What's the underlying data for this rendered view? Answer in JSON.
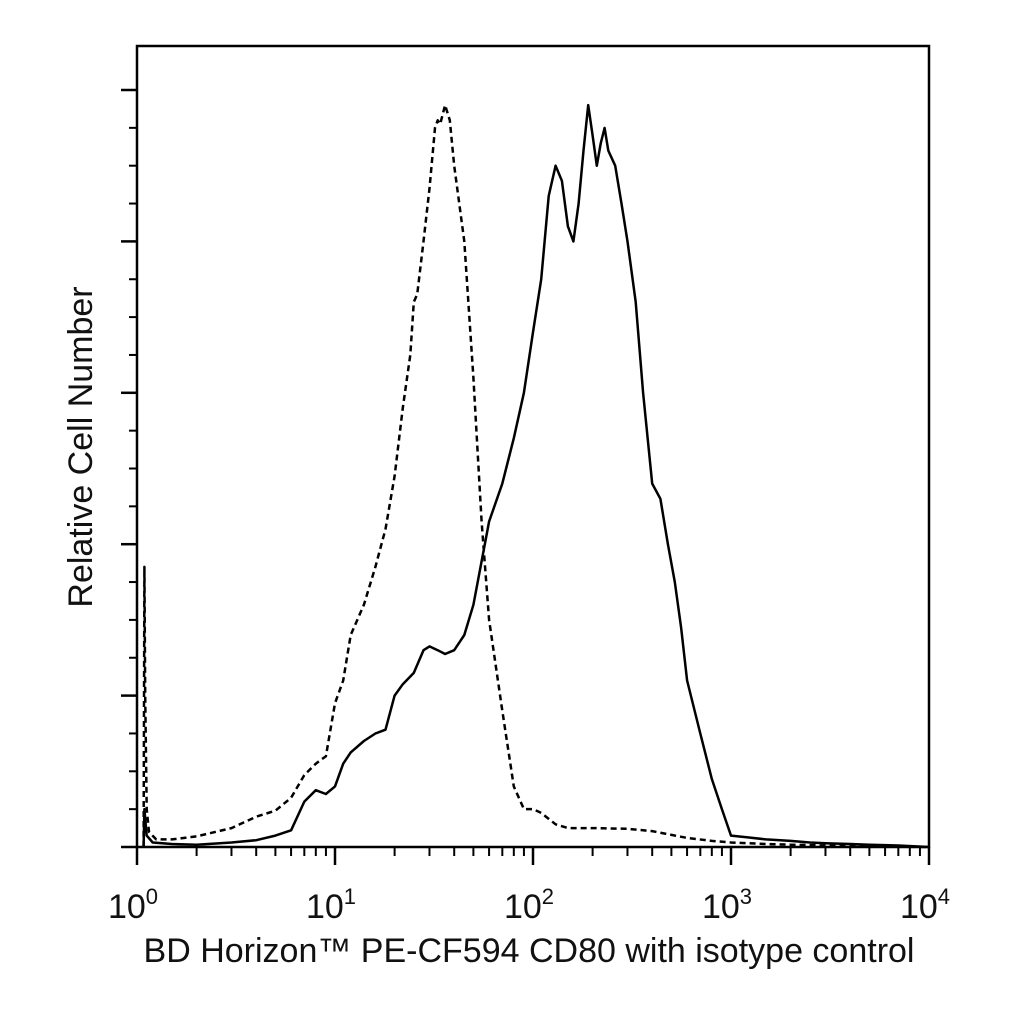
{
  "chart_data": {
    "type": "line",
    "title": "",
    "xlabel": "BD Horizon™ PE-CF594 CD80 with isotype control",
    "ylabel": "Relative Cell Number",
    "x_scale": "log",
    "xlim": [
      1,
      10000
    ],
    "ylim": [
      0,
      100
    ],
    "grid": false,
    "legend": "none",
    "x_ticks": [
      {
        "base": "10",
        "exp": "0",
        "value": 1
      },
      {
        "base": "10",
        "exp": "1",
        "value": 10
      },
      {
        "base": "10",
        "exp": "2",
        "value": 100
      },
      {
        "base": "10",
        "exp": "3",
        "value": 1000
      },
      {
        "base": "10",
        "exp": "4",
        "value": 10000
      }
    ],
    "y_major_ticks": [
      0,
      20,
      40,
      60,
      80,
      100
    ],
    "series": [
      {
        "style": "dashed",
        "color": "#000000",
        "points": [
          [
            1.08,
            0
          ],
          [
            1.09,
            37
          ],
          [
            1.1,
            20
          ],
          [
            1.12,
            5
          ],
          [
            1.15,
            2
          ],
          [
            1.25,
            1
          ],
          [
            1.5,
            1
          ],
          [
            2,
            1.4
          ],
          [
            3,
            2.5
          ],
          [
            4,
            4
          ],
          [
            5,
            4.8
          ],
          [
            6,
            6.5
          ],
          [
            7,
            9.5
          ],
          [
            8,
            11
          ],
          [
            9,
            12
          ],
          [
            10,
            19
          ],
          [
            11,
            22
          ],
          [
            12,
            28
          ],
          [
            14,
            32
          ],
          [
            16,
            37
          ],
          [
            18,
            42
          ],
          [
            20,
            49
          ],
          [
            22,
            58
          ],
          [
            24,
            65
          ],
          [
            25,
            72
          ],
          [
            26,
            73
          ],
          [
            28,
            80
          ],
          [
            30,
            87
          ],
          [
            32,
            95
          ],
          [
            33,
            96
          ],
          [
            34,
            95.5
          ],
          [
            36,
            98
          ],
          [
            38,
            96
          ],
          [
            40,
            90
          ],
          [
            45,
            80
          ],
          [
            50,
            62
          ],
          [
            55,
            43
          ],
          [
            60,
            30
          ],
          [
            70,
            18
          ],
          [
            80,
            8
          ],
          [
            90,
            5
          ],
          [
            100,
            5
          ],
          [
            110,
            4.5
          ],
          [
            130,
            3
          ],
          [
            150,
            2.5
          ],
          [
            200,
            2.5
          ],
          [
            300,
            2.4
          ],
          [
            400,
            2.1
          ],
          [
            500,
            1.6
          ],
          [
            600,
            1.2
          ],
          [
            800,
            0.8
          ],
          [
            1000,
            0.6
          ],
          [
            1500,
            0.4
          ],
          [
            2000,
            0.3
          ],
          [
            3000,
            0.2
          ],
          [
            5000,
            0.1
          ],
          [
            10000,
            0
          ]
        ]
      },
      {
        "style": "solid",
        "color": "#000000",
        "points": [
          [
            1.08,
            0
          ],
          [
            1.09,
            5
          ],
          [
            1.12,
            1.5
          ],
          [
            1.2,
            0.6
          ],
          [
            1.5,
            0.4
          ],
          [
            2,
            0.3
          ],
          [
            3,
            0.6
          ],
          [
            4,
            0.9
          ],
          [
            5,
            1.5
          ],
          [
            6,
            2.2
          ],
          [
            7,
            6
          ],
          [
            8,
            7.5
          ],
          [
            9,
            7
          ],
          [
            10,
            8
          ],
          [
            11,
            11
          ],
          [
            12,
            12.5
          ],
          [
            14,
            14
          ],
          [
            16,
            15
          ],
          [
            18,
            15.5
          ],
          [
            20,
            20
          ],
          [
            22,
            21.5
          ],
          [
            25,
            23
          ],
          [
            28,
            26
          ],
          [
            30,
            26.5
          ],
          [
            33,
            26
          ],
          [
            36,
            25.5
          ],
          [
            40,
            26
          ],
          [
            45,
            28
          ],
          [
            50,
            32
          ],
          [
            60,
            43
          ],
          [
            70,
            48
          ],
          [
            80,
            54
          ],
          [
            90,
            60
          ],
          [
            100,
            68
          ],
          [
            110,
            75
          ],
          [
            120,
            86
          ],
          [
            130,
            90
          ],
          [
            140,
            88
          ],
          [
            150,
            82
          ],
          [
            160,
            80
          ],
          [
            170,
            85
          ],
          [
            180,
            92
          ],
          [
            190,
            98
          ],
          [
            200,
            94
          ],
          [
            210,
            90
          ],
          [
            220,
            93
          ],
          [
            230,
            95
          ],
          [
            240,
            92
          ],
          [
            260,
            90
          ],
          [
            280,
            85
          ],
          [
            300,
            80
          ],
          [
            330,
            72
          ],
          [
            360,
            60
          ],
          [
            400,
            48
          ],
          [
            440,
            46
          ],
          [
            480,
            40
          ],
          [
            520,
            35
          ],
          [
            560,
            29
          ],
          [
            600,
            22
          ],
          [
            700,
            15
          ],
          [
            800,
            9
          ],
          [
            900,
            5
          ],
          [
            1000,
            1.5
          ],
          [
            1200,
            1.3
          ],
          [
            1500,
            1
          ],
          [
            2000,
            0.8
          ],
          [
            2500,
            0.6
          ],
          [
            3000,
            0.5
          ],
          [
            4000,
            0.4
          ],
          [
            5000,
            0.3
          ],
          [
            7000,
            0.2
          ],
          [
            10000,
            0
          ]
        ]
      }
    ]
  }
}
